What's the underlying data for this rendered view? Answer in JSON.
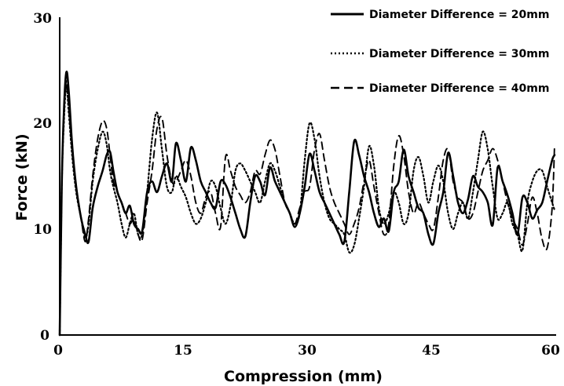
{
  "chart_data": {
    "type": "line",
    "xlabel": "Compression (mm)",
    "ylabel": "Force (kN)",
    "xlim": [
      0,
      60
    ],
    "ylim": [
      0,
      30
    ],
    "xticks": [
      "0",
      "15",
      "30",
      "45",
      "60"
    ],
    "yticks": [
      "0",
      "10",
      "20",
      "30"
    ],
    "grid": false,
    "legend_position": "top-right",
    "series": [
      {
        "name": "Diameter Difference = 20mm",
        "style": "solid",
        "color": "#000000",
        "x": [
          0,
          0.25,
          0.5,
          0.8,
          1.1,
          1.5,
          2.0,
          2.6,
          3.1,
          3.5,
          4.0,
          4.6,
          5.2,
          5.7,
          6.1,
          6.5,
          7.0,
          7.5,
          8.0,
          8.5,
          9.0,
          9.5,
          10.0,
          10.6,
          11.2,
          11.8,
          12.4,
          13.0,
          13.6,
          14.1,
          14.7,
          15.3,
          15.9,
          16.5,
          17.1,
          17.7,
          18.3,
          18.9,
          19.5,
          20.1,
          20.7,
          21.3,
          21.9,
          22.5,
          23.1,
          23.7,
          24.3,
          24.9,
          25.5,
          26.1,
          26.7,
          27.3,
          27.9,
          28.5,
          29.1,
          29.7,
          30.3,
          30.9,
          31.5,
          32.1,
          32.7,
          33.3,
          33.9,
          34.5,
          35.1,
          35.7,
          36.3,
          36.9,
          37.5,
          38.1,
          38.7,
          39.3,
          39.9,
          40.5,
          41.1,
          41.7,
          42.3,
          42.9,
          43.5,
          44.1,
          44.7,
          45.3,
          45.9,
          46.5,
          47.1,
          47.7,
          48.3,
          48.9,
          49.5,
          50.1,
          50.7,
          51.3,
          51.9,
          52.5,
          53.1,
          53.7,
          54.3,
          54.9,
          55.5,
          56.1,
          56.7,
          57.3,
          57.9,
          58.5,
          59.1,
          59.7,
          60.0
        ],
        "y": [
          0,
          14,
          21,
          24.8,
          23,
          18,
          14,
          11,
          9.5,
          8.8,
          12,
          14,
          15.5,
          17,
          17.3,
          15.5,
          13.5,
          12.5,
          11.5,
          12.2,
          10.5,
          10,
          9.8,
          13.5,
          14.5,
          13.5,
          15,
          16.2,
          14.5,
          18.1,
          16.5,
          14.5,
          17.7,
          16.5,
          14.5,
          13.5,
          12.5,
          12,
          14.5,
          14.2,
          13,
          11.5,
          10,
          9.3,
          12.5,
          15,
          14.5,
          13.2,
          15.8,
          14.5,
          13.5,
          12.5,
          11.5,
          10.2,
          11.5,
          14,
          17.1,
          15.5,
          13.5,
          12.5,
          11.5,
          10.5,
          9.5,
          8.8,
          13.5,
          18.3,
          17,
          15,
          13.5,
          11.5,
          10.2,
          11,
          9.8,
          13.5,
          14.5,
          17.5,
          15,
          13.5,
          12,
          11.5,
          9.5,
          8.6,
          11.5,
          13.5,
          17.2,
          15,
          12.5,
          11.5,
          12.8,
          15,
          14,
          13.5,
          12.5,
          10.4,
          15.8,
          14.5,
          13.2,
          11.5,
          9.5,
          13,
          12.5,
          11,
          11.8,
          12.5,
          14.5,
          16.5,
          17
        ]
      },
      {
        "name": "Diameter Difference = 30mm",
        "style": "dotted",
        "color": "#000000",
        "x": [
          0,
          0.25,
          0.5,
          0.8,
          1.1,
          1.5,
          2.0,
          2.6,
          3.1,
          3.5,
          4.0,
          4.6,
          5.2,
          5.7,
          6.1,
          6.5,
          7.0,
          7.5,
          8.0,
          8.5,
          9.0,
          9.5,
          10.0,
          10.6,
          11.2,
          11.8,
          12.4,
          13.0,
          13.6,
          14.1,
          14.7,
          15.3,
          15.9,
          16.5,
          17.1,
          17.7,
          18.3,
          18.9,
          19.5,
          20.1,
          20.7,
          21.3,
          21.9,
          22.5,
          23.1,
          23.7,
          24.3,
          24.9,
          25.5,
          26.1,
          26.7,
          27.3,
          27.9,
          28.5,
          29.1,
          29.7,
          30.3,
          30.9,
          31.5,
          32.1,
          32.7,
          33.3,
          33.9,
          34.5,
          35.1,
          35.7,
          36.3,
          36.9,
          37.5,
          38.1,
          38.7,
          39.3,
          39.9,
          40.5,
          41.1,
          41.7,
          42.3,
          42.9,
          43.5,
          44.1,
          44.7,
          45.3,
          45.9,
          46.5,
          47.1,
          47.7,
          48.3,
          48.9,
          49.5,
          50.1,
          50.7,
          51.3,
          51.9,
          52.5,
          53.1,
          53.7,
          54.3,
          54.9,
          55.5,
          56.1,
          56.7,
          57.3,
          57.9,
          58.5,
          59.1,
          59.7,
          60.0
        ],
        "y": [
          0,
          14,
          20,
          23.5,
          21,
          17,
          13.5,
          11,
          9.2,
          10.5,
          14.5,
          17.5,
          19.2,
          18,
          15.5,
          14,
          12.5,
          10.5,
          9.2,
          10.5,
          11.5,
          9.5,
          9.5,
          13.5,
          18.5,
          21,
          17.5,
          14,
          13.5,
          15,
          14,
          13,
          11.5,
          10.5,
          11,
          12.5,
          14.5,
          14,
          12,
          10.5,
          12.2,
          15.5,
          16.2,
          15.5,
          14.5,
          13.5,
          12.5,
          14.5,
          16.2,
          15.5,
          14,
          12.5,
          11.5,
          10.5,
          11.5,
          16.5,
          20,
          18.5,
          15,
          12.5,
          11,
          10.5,
          10,
          9.5,
          7.8,
          8.5,
          11,
          14,
          17.8,
          16,
          12,
          10.5,
          11.5,
          13.5,
          12.5,
          10.5,
          11.5,
          15.5,
          16.8,
          15,
          12.5,
          14.5,
          16,
          14.5,
          11.5,
          10,
          11.5,
          12.5,
          11,
          13.5,
          16.5,
          19.2,
          17.5,
          14,
          11,
          11.5,
          12.5,
          10.5,
          9.5,
          8,
          12.5,
          14.5,
          15.5,
          15.5,
          14,
          12.5,
          11.8
        ]
      },
      {
        "name": "Diameter Difference = 40mm",
        "style": "dashed",
        "color": "#000000",
        "x": [
          0,
          0.25,
          0.5,
          0.8,
          1.1,
          1.5,
          2.0,
          2.6,
          3.1,
          3.5,
          4.0,
          4.6,
          5.2,
          5.7,
          6.1,
          6.5,
          7.0,
          7.5,
          8.0,
          8.5,
          9.0,
          9.5,
          10.0,
          10.6,
          11.2,
          11.8,
          12.4,
          13.0,
          13.6,
          14.1,
          14.7,
          15.3,
          15.9,
          16.5,
          17.1,
          17.7,
          18.3,
          18.9,
          19.5,
          20.1,
          20.7,
          21.3,
          21.9,
          22.5,
          23.1,
          23.7,
          24.3,
          24.9,
          25.5,
          26.1,
          26.7,
          27.3,
          27.9,
          28.5,
          29.1,
          29.7,
          30.3,
          30.9,
          31.5,
          32.1,
          32.7,
          33.3,
          33.9,
          34.5,
          35.1,
          35.7,
          36.3,
          36.9,
          37.5,
          38.1,
          38.7,
          39.3,
          39.9,
          40.5,
          41.1,
          41.7,
          42.3,
          42.9,
          43.5,
          44.1,
          44.7,
          45.3,
          45.9,
          46.5,
          47.1,
          47.7,
          48.3,
          48.9,
          49.5,
          50.1,
          50.7,
          51.3,
          51.9,
          52.5,
          53.1,
          53.7,
          54.3,
          54.9,
          55.5,
          56.1,
          56.7,
          57.3,
          57.9,
          58.5,
          59.1,
          59.7,
          60.0
        ],
        "y": [
          0,
          14,
          20.5,
          24,
          21.5,
          17.5,
          14,
          11,
          8.8,
          11,
          15,
          18.5,
          20.2,
          19.5,
          17,
          14.5,
          13.5,
          12.5,
          11.5,
          10.5,
          11,
          9.5,
          9,
          12.5,
          15.5,
          19.5,
          20.5,
          17,
          14.5,
          14.5,
          15.5,
          16.5,
          15,
          12.5,
          11.5,
          13,
          13.5,
          11.5,
          10.2,
          16.8,
          15.5,
          14,
          13.2,
          12.5,
          13.5,
          15.5,
          15.2,
          17,
          18.4,
          17.5,
          15,
          12.5,
          11.5,
          10.5,
          12,
          13.5,
          14,
          17.5,
          19,
          16.5,
          14,
          12.5,
          11.5,
          10.5,
          9.5,
          10.5,
          12,
          14.5,
          16.5,
          14,
          11.5,
          9.5,
          10.5,
          16,
          18.8,
          17,
          13.5,
          11.5,
          12.5,
          11.5,
          10.5,
          10,
          13,
          16.5,
          17.5,
          14.5,
          13,
          12.5,
          11,
          11.5,
          13.5,
          15.5,
          16.5,
          17.6,
          16.5,
          14.5,
          12.5,
          11,
          10,
          8.5,
          10.5,
          13,
          11.5,
          9,
          8.2,
          12,
          18
        ]
      }
    ]
  }
}
